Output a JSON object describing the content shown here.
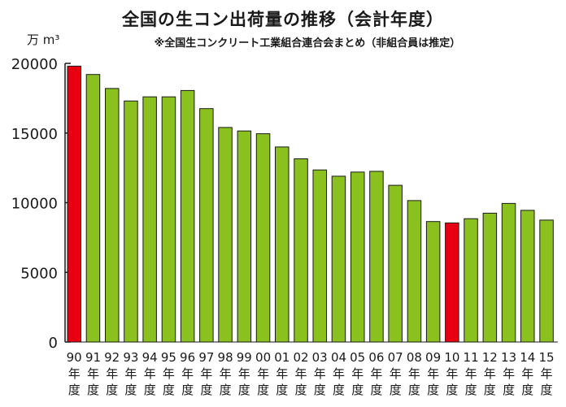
{
  "chart_data": {
    "type": "bar",
    "title": "全国の生コン出荷量の推移（会計年度）",
    "subtitle": "※全国生コンクリート工業組合連合会まとめ（非組合員は推定）",
    "ylabel": "万 m³",
    "xlabel": "",
    "ylim": [
      0,
      20000
    ],
    "yticks": [
      0,
      5000,
      10000,
      15000,
      20000
    ],
    "fiscal_year_label": [
      "年",
      "度"
    ],
    "categories": [
      "90",
      "91",
      "92",
      "93",
      "94",
      "95",
      "96",
      "97",
      "98",
      "99",
      "00",
      "01",
      "02",
      "03",
      "04",
      "05",
      "06",
      "07",
      "08",
      "09",
      "10",
      "11",
      "12",
      "13",
      "14",
      "15"
    ],
    "values": [
      19800,
      19200,
      18200,
      17300,
      17600,
      17600,
      18050,
      16750,
      15400,
      15150,
      14950,
      14000,
      13150,
      12350,
      11900,
      12200,
      12250,
      11250,
      10150,
      8650,
      8550,
      8850,
      9250,
      9950,
      9450,
      8750
    ],
    "highlighted": [
      "90",
      "10"
    ],
    "grid": false,
    "colors": {
      "bar": "#8ac11f",
      "highlight": "#e60012",
      "axis": "#1a1a1a"
    }
  }
}
